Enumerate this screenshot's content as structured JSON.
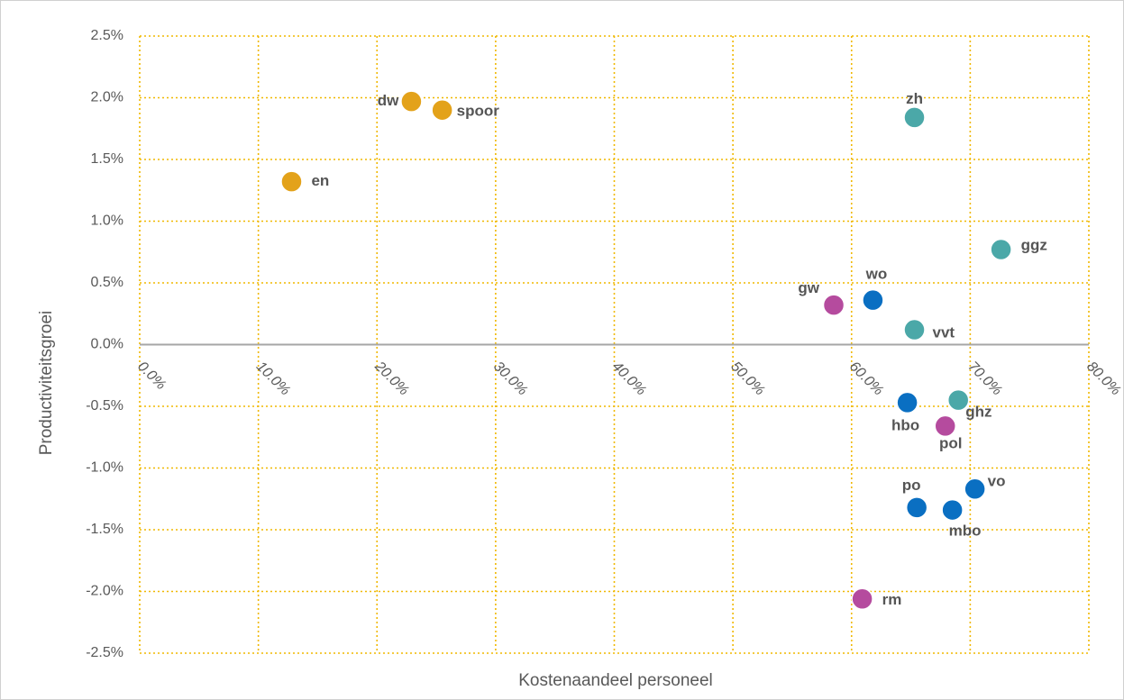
{
  "chart_data": {
    "type": "scatter",
    "x_label": "Kostenaandeel personeel",
    "y_label": "Productiviteitsgroei",
    "xlim": [
      0,
      80
    ],
    "ylim": [
      -2.5,
      2.5
    ],
    "xticks": [
      {
        "value": 0,
        "label": "0.0%"
      },
      {
        "value": 10,
        "label": "10.0%"
      },
      {
        "value": 20,
        "label": "20.0%"
      },
      {
        "value": 30,
        "label": "30.0%"
      },
      {
        "value": 40,
        "label": "40.0%"
      },
      {
        "value": 50,
        "label": "50.0%"
      },
      {
        "value": 60,
        "label": "60.0%"
      },
      {
        "value": 70,
        "label": "70.0%"
      },
      {
        "value": 80,
        "label": "80.0%"
      }
    ],
    "yticks": [
      {
        "value": -2.5,
        "label": "-2.5%"
      },
      {
        "value": -2,
        "label": "-2.0%"
      },
      {
        "value": -1.5,
        "label": "-1.5%"
      },
      {
        "value": -1,
        "label": "-1.0%"
      },
      {
        "value": -0.5,
        "label": "-0.5%"
      },
      {
        "value": 0,
        "label": "0.0%"
      },
      {
        "value": 0.5,
        "label": "0.5%"
      },
      {
        "value": 1,
        "label": "1.0%"
      },
      {
        "value": 1.5,
        "label": "1.5%"
      },
      {
        "value": 2,
        "label": "2.0%"
      },
      {
        "value": 2.5,
        "label": "2.5%"
      }
    ],
    "grid": true,
    "series": [
      {
        "color": "#e3a21a",
        "labels": [
          "dw",
          "spoor",
          "en"
        ],
        "x": [
          22.9,
          25.5,
          12.8
        ],
        "values": [
          1.97,
          1.9,
          1.32
        ]
      },
      {
        "color": "#4ba8a8",
        "labels": [
          "zh",
          "ggz",
          "vvt",
          "ghz"
        ],
        "x": [
          65.3,
          72.6,
          65.3,
          69.0
        ],
        "values": [
          1.84,
          0.77,
          0.12,
          -0.45
        ]
      },
      {
        "color": "#0a6fc2",
        "labels": [
          "wo",
          "hbo",
          "po",
          "vo",
          "mbo"
        ],
        "x": [
          61.8,
          64.7,
          65.5,
          70.4,
          68.5
        ],
        "values": [
          0.36,
          -0.47,
          -1.32,
          -1.17,
          -1.34
        ]
      },
      {
        "color": "#b54b9e",
        "labels": [
          "gw",
          "pol",
          "rm"
        ],
        "x": [
          58.5,
          67.9,
          60.9
        ],
        "values": [
          0.32,
          -0.66,
          -2.06
        ]
      }
    ]
  }
}
